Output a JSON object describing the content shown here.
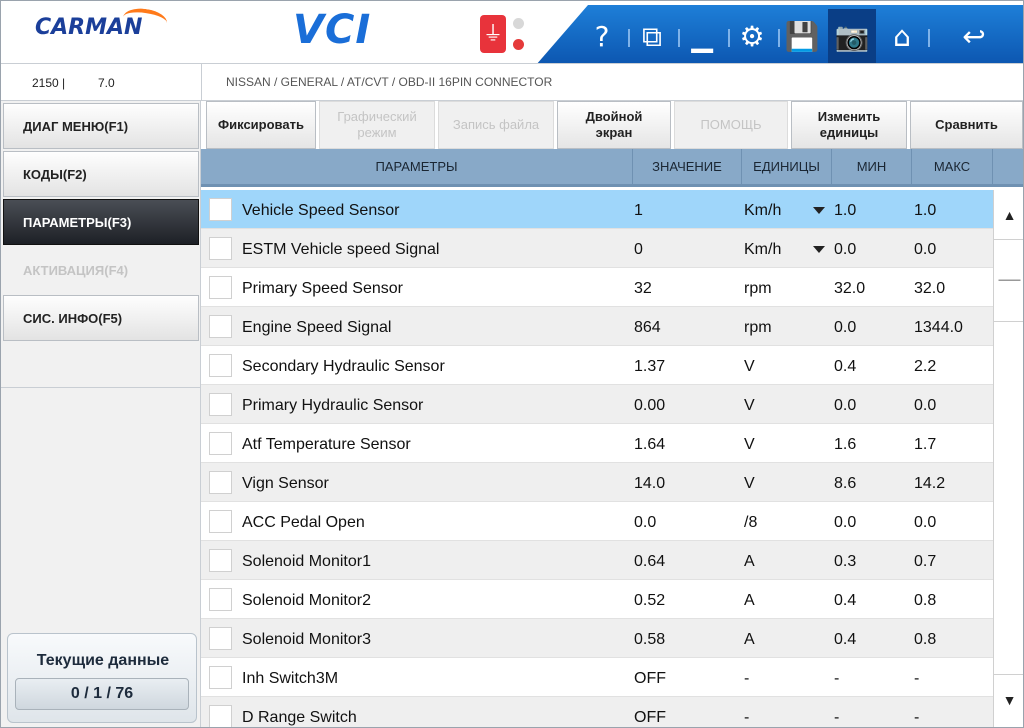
{
  "header": {
    "logo_text": "CARMAN",
    "product_text": "VCI",
    "usb_icon": "usb-icon",
    "toolbar": [
      {
        "name": "help-icon",
        "glyph": "?"
      },
      {
        "name": "window-icon",
        "glyph": "⧉"
      },
      {
        "name": "minimize-icon",
        "glyph": "▁"
      },
      {
        "name": "settings-icon",
        "glyph": "⚙"
      },
      {
        "name": "save-icon",
        "glyph": "💾"
      },
      {
        "name": "camera-icon",
        "glyph": "📷"
      },
      {
        "name": "home-icon",
        "glyph": "⌂"
      },
      {
        "name": "back-icon",
        "glyph": "↩"
      }
    ]
  },
  "infobar": {
    "version_left": "2150  |",
    "version_right": "7.0",
    "path": "NISSAN / GENERAL / AT/CVT / OBD-II 16PIN CONNECTOR"
  },
  "sidebar": {
    "items": [
      {
        "label": "ДИАГ МЕНЮ(F1)",
        "state": "normal"
      },
      {
        "label": "КОДЫ(F2)",
        "state": "normal"
      },
      {
        "label": "ПАРАМЕТРЫ(F3)",
        "state": "active"
      },
      {
        "label": "АКТИВАЦИЯ(F4)",
        "state": "disabled"
      },
      {
        "label": "СИС. ИНФО(F5)",
        "state": "normal"
      }
    ],
    "status_title": "Текущие данные",
    "status_count": "0 / 1 / 76"
  },
  "functions": {
    "fix": "Фиксировать",
    "graph_line1": "Графический",
    "graph_line2": "режим",
    "record": "Запись файла",
    "dual_line1": "Двойной",
    "dual_line2": "экран",
    "help": "ПОМОЩЬ",
    "units_line1": "Изменить",
    "units_line2": "единицы",
    "compare": "Сравнить"
  },
  "table": {
    "headers": {
      "param": "ПАРАМЕТРЫ",
      "value": "ЗНАЧЕНИЕ",
      "unit": "ЕДИНИЦЫ",
      "min": "МИН",
      "max": "МАКС"
    },
    "rows": [
      {
        "param": "Vehicle Speed Sensor",
        "value": "1",
        "unit": "Km/h",
        "min": "1.0",
        "max": "1.0",
        "dropdown": true,
        "selected": true
      },
      {
        "param": "ESTM Vehicle speed Signal",
        "value": "0",
        "unit": "Km/h",
        "min": "0.0",
        "max": "0.0",
        "dropdown": true
      },
      {
        "param": "Primary Speed Sensor",
        "value": "32",
        "unit": "rpm",
        "min": "32.0",
        "max": "32.0"
      },
      {
        "param": "Engine Speed Signal",
        "value": "864",
        "unit": "rpm",
        "min": "0.0",
        "max": "1344.0"
      },
      {
        "param": "Secondary Hydraulic Sensor",
        "value": "1.37",
        "unit": "V",
        "min": "0.4",
        "max": "2.2"
      },
      {
        "param": "Primary Hydraulic Sensor",
        "value": "0.00",
        "unit": "V",
        "min": "0.0",
        "max": "0.0"
      },
      {
        "param": "Atf Temperature Sensor",
        "value": "1.64",
        "unit": "V",
        "min": "1.6",
        "max": "1.7"
      },
      {
        "param": "Vign Sensor",
        "value": "14.0",
        "unit": "V",
        "min": "8.6",
        "max": "14.2"
      },
      {
        "param": "ACC Pedal Open",
        "value": "0.0",
        "unit": "/8",
        "min": "0.0",
        "max": "0.0"
      },
      {
        "param": "Solenoid Monitor1",
        "value": "0.64",
        "unit": "A",
        "min": "0.3",
        "max": "0.7"
      },
      {
        "param": "Solenoid Monitor2",
        "value": "0.52",
        "unit": "A",
        "min": "0.4",
        "max": "0.8"
      },
      {
        "param": "Solenoid Monitor3",
        "value": "0.58",
        "unit": "A",
        "min": "0.4",
        "max": "0.8"
      },
      {
        "param": "Inh Switch3M",
        "value": "OFF",
        "unit": "-",
        "min": "-",
        "max": "-"
      },
      {
        "param": "D Range Switch",
        "value": "OFF",
        "unit": "-",
        "min": "-",
        "max": "-"
      }
    ]
  },
  "scrollbar": {
    "up": "▲",
    "thumb": "—",
    "down": "▼"
  }
}
